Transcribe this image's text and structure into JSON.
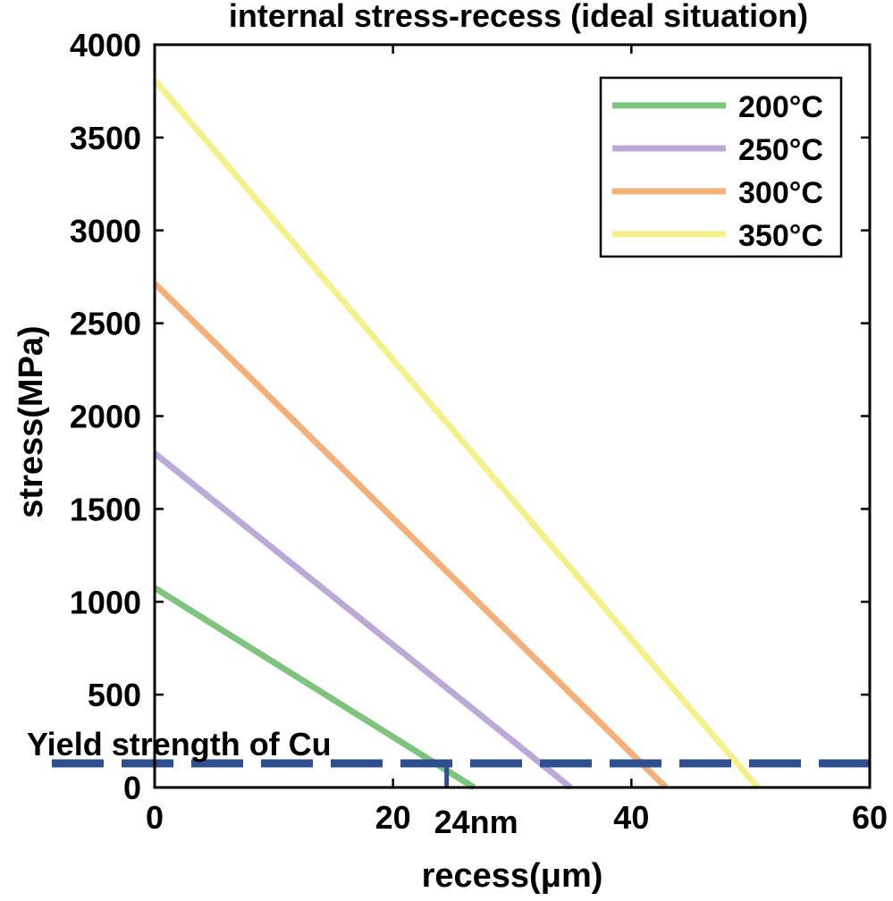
{
  "chart_data": {
    "type": "line",
    "title": "internal stress-recess (ideal situation)",
    "xlabel": "recess(μm)",
    "ylabel": "stress(MPa)",
    "xlim": [
      0,
      60
    ],
    "ylim": [
      0,
      4000
    ],
    "xticks": [
      0,
      20,
      40,
      60
    ],
    "yticks": [
      0,
      500,
      1000,
      1500,
      2000,
      2500,
      3000,
      3500,
      4000
    ],
    "grid": false,
    "legend_position": "top-right",
    "series": [
      {
        "name": "200°C",
        "color": "#7dc57d",
        "x": [
          0,
          26.8
        ],
        "y": [
          1075,
          0
        ]
      },
      {
        "name": "250°C",
        "color": "#bbaad8",
        "x": [
          0,
          34.9
        ],
        "y": [
          1800,
          0
        ]
      },
      {
        "name": "300°C",
        "color": "#f5b07a",
        "x": [
          0,
          42.9
        ],
        "y": [
          2715,
          0
        ]
      },
      {
        "name": "350°C",
        "color": "#f4f08a",
        "x": [
          0,
          50.6
        ],
        "y": [
          3810,
          0
        ]
      }
    ],
    "annotations": {
      "yield_line": {
        "label": "Yield strength of Cu",
        "y": 130,
        "color": "#2e4e8e",
        "style": "dashed"
      },
      "marker": {
        "label": "24nm",
        "x": 24.5
      }
    }
  }
}
